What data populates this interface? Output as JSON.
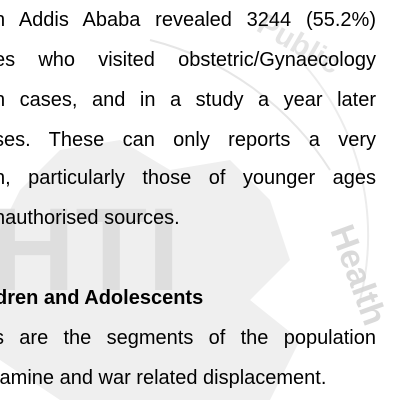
{
  "watermark": {
    "seal_text": "Ethiopia Public Health Training Initiative",
    "letters": "EHTI",
    "color": "#cfcfcf"
  },
  "paragraph_1": [
    "n Addis Ababa revealed 3244 (55.2%)",
    "es who visited obstetric/Gynaecology",
    "n cases, and in a  study a year later",
    "ses. These can only reports a very",
    "n, particularly those of younger ages",
    "nauthorised sources."
  ],
  "section_heading": "dren and Adolescents",
  "paragraph_2": [
    "s are the segments of the population",
    "famine and war related displacement."
  ]
}
